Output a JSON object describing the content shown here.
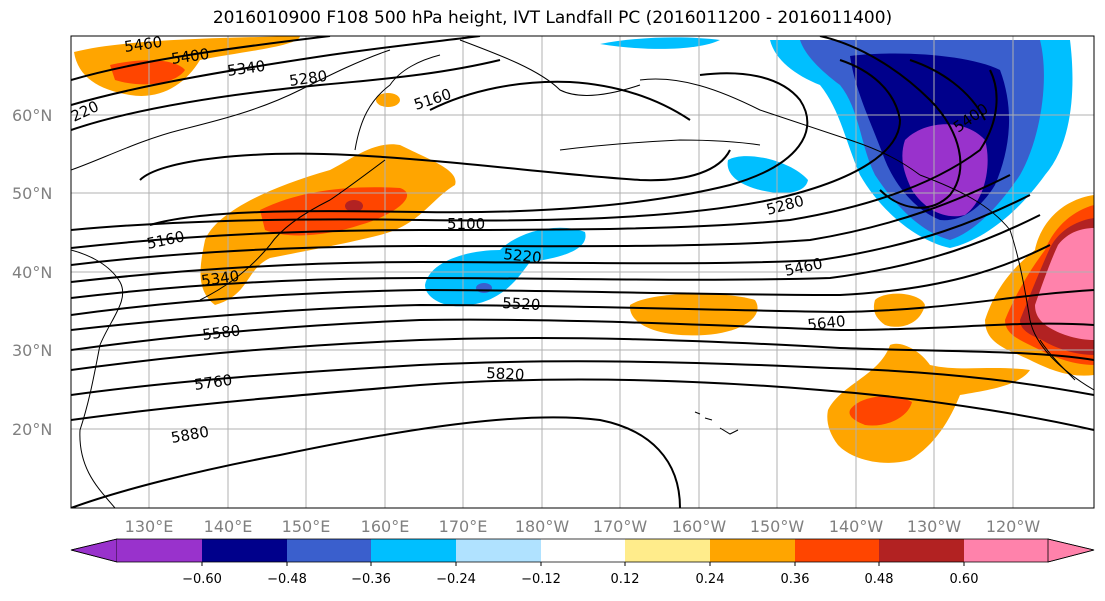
{
  "title": "2016010900 F108 500 hPa height, IVT Landfall PC (2016011200 - 2016011400)",
  "map": {
    "lat_labels": [
      "60°N",
      "50°N",
      "40°N",
      "30°N",
      "20°N"
    ],
    "lon_labels": [
      "130°E",
      "140°E",
      "150°E",
      "160°E",
      "170°E",
      "180°W",
      "170°W",
      "160°W",
      "150°W",
      "140°W",
      "130°W",
      "120°W"
    ],
    "contour_labels": [
      "5460",
      "5400",
      "5340",
      "5280",
      "5160",
      "220",
      "5100",
      "5160",
      "5340",
      "5220",
      "5520",
      "5580",
      "5280",
      "5460",
      "5640",
      "5760",
      "5820",
      "5880",
      "5400"
    ],
    "grid": true
  },
  "colorbar": {
    "colors": [
      "#9932cc",
      "#00008b",
      "#3a5fcd",
      "#00bfff",
      "#b0e2ff",
      "#ffffff",
      "#ffec8b",
      "#ffa500",
      "#ff4500",
      "#b22222",
      "#ff82ab"
    ],
    "tick_labels": [
      "−0.60",
      "−0.48",
      "−0.36",
      "−0.24",
      "−0.12",
      "0.12",
      "0.24",
      "0.36",
      "0.48",
      "0.60"
    ],
    "extend": "both"
  },
  "colors": {
    "positive_light": "#ffec8b",
    "positive_mid": "#ffa500",
    "positive_strong": "#ff4500",
    "positive_max": "#b22222",
    "positive_extreme": "#ff82ab",
    "negative_light": "#b0e2ff",
    "negative_mid": "#00bfff",
    "negative_strong": "#3a5fcd",
    "negative_max": "#00008b",
    "negative_extreme": "#9932cc"
  }
}
